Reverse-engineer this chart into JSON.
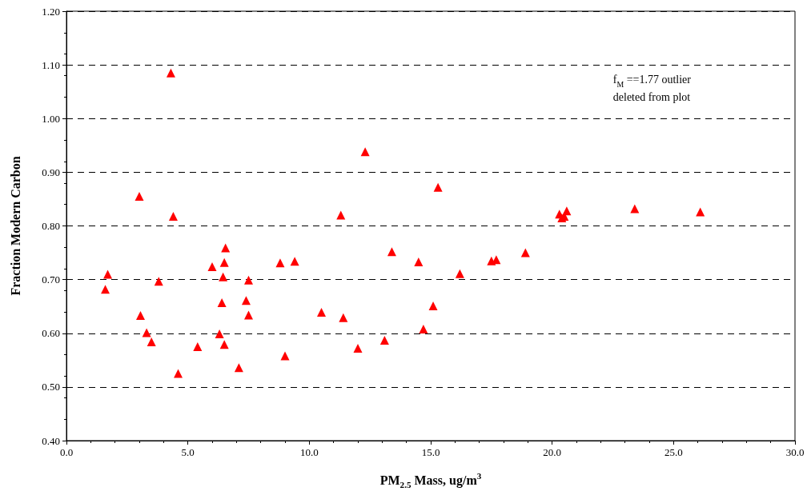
{
  "chart_data": {
    "type": "scatter",
    "xlabel": "PM$_{2.5}$ Mass, ug/m$^{3}$",
    "ylabel": "Fraction Modern Carbon",
    "annotations": [
      "f$_{M}$ ==1.77 outlier\ndeleted from plot"
    ],
    "x": [
      4.3,
      3.0,
      4.4,
      1.7,
      1.6,
      3.05,
      3.3,
      3.5,
      3.8,
      4.6,
      5.4,
      6.0,
      6.55,
      6.5,
      6.45,
      6.4,
      6.3,
      6.5,
      7.1,
      7.4,
      7.5,
      7.5,
      8.8,
      9.0,
      9.4,
      10.5,
      11.3,
      11.4,
      12.3,
      12.0,
      13.1,
      13.4,
      15.3,
      14.5,
      14.7,
      15.1,
      16.2,
      17.5,
      17.7,
      18.9,
      20.3,
      20.4,
      20.5,
      20.6,
      23.4,
      26.1
    ],
    "series": [
      {
        "color": "#ff0000",
        "values": [
          1.085,
          0.855,
          0.818,
          0.71,
          0.682,
          0.633,
          0.601,
          0.584,
          0.697,
          0.525,
          0.575,
          0.724,
          0.759,
          0.732,
          0.705,
          0.657,
          0.599,
          0.579,
          0.536,
          0.661,
          0.699,
          0.634,
          0.731,
          0.558,
          0.734,
          0.639,
          0.82,
          0.629,
          0.938,
          0.572,
          0.587,
          0.752,
          0.872,
          0.733,
          0.608,
          0.651,
          0.711,
          0.735,
          0.737,
          0.75,
          0.822,
          0.815,
          0.818,
          0.828,
          0.832,
          0.826
        ]
      }
    ],
    "xlim": [
      0,
      30
    ],
    "xticks": [
      {
        "value": 0,
        "label": "0.0"
      },
      {
        "value": 5,
        "label": "5.0"
      },
      {
        "value": 10,
        "label": "10.0"
      },
      {
        "value": 15,
        "label": "15.0"
      },
      {
        "value": 20,
        "label": "20.0"
      },
      {
        "value": 25,
        "label": "25.0"
      },
      {
        "value": 30,
        "label": "30.0"
      }
    ],
    "ylim": [
      0.4,
      1.2
    ],
    "yticks": [
      {
        "value": 0.4,
        "label": "0.40"
      },
      {
        "value": 0.5,
        "label": "0.50"
      },
      {
        "value": 0.6,
        "label": "0.60"
      },
      {
        "value": 0.7,
        "label": "0.70"
      },
      {
        "value": 0.8,
        "label": "0.80"
      },
      {
        "value": 0.9,
        "label": "0.90"
      },
      {
        "value": 1.0,
        "label": "1.00"
      },
      {
        "value": 1.1,
        "label": "1.10"
      },
      {
        "value": 1.2,
        "label": "1.20"
      }
    ],
    "grid": "y",
    "marker": "triangle"
  }
}
